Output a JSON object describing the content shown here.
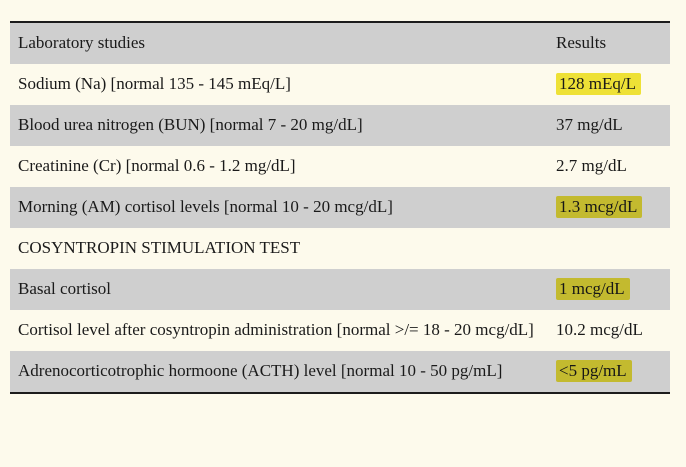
{
  "page": {
    "background_color": "#fdfaec"
  },
  "table": {
    "colors": {
      "row_gray": "#cfcfcf",
      "row_cream": "#fdfaec",
      "highlight_yellow": "#f0e63a",
      "border": "#1c1c1c"
    },
    "header": {
      "col1": "Laboratory studies",
      "col2": "Results"
    },
    "rows": [
      {
        "label": "Sodium (Na) [normal 135 - 145 mEq/L]",
        "result": "128 mEq/L",
        "highlighted": true
      },
      {
        "label": "Blood urea nitrogen (BUN) [normal 7 - 20 mg/dL]",
        "result": "37 mg/dL",
        "highlighted": false
      },
      {
        "label": "Creatinine (Cr) [normal 0.6 - 1.2 mg/dL]",
        "result": "2.7 mg/dL",
        "highlighted": false
      },
      {
        "label": "Morning (AM) cortisol levels [normal 10 - 20 mcg/dL]",
        "result": "1.3 mcg/dL",
        "highlighted": true
      },
      {
        "label": "COSYNTROPIN STIMULATION TEST",
        "result": "",
        "highlighted": false
      },
      {
        "label": "Basal cortisol",
        "result": "1 mcg/dL",
        "highlighted": true
      },
      {
        "label": "Cortisol level after cosyntropin administration [normal >/= 18 - 20 mcg/dL]",
        "result": "10.2 mcg/dL",
        "highlighted": false
      },
      {
        "label": "Adrenocorticotrophic hormoone (ACTH) level [normal 10 - 50 pg/mL]",
        "result": "<5 pg/mL",
        "highlighted": true
      }
    ]
  }
}
